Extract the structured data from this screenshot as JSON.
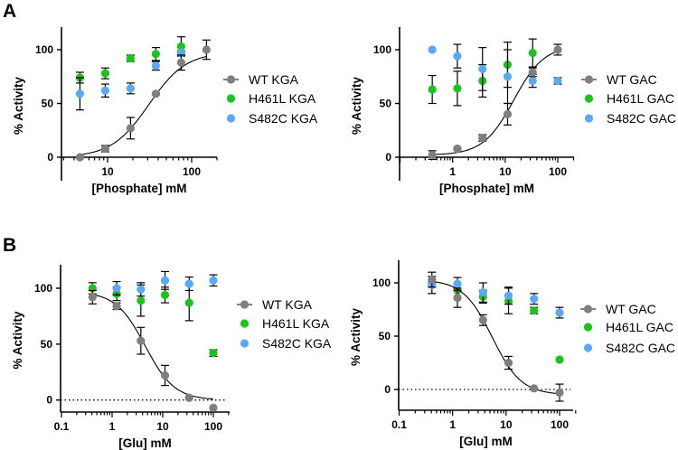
{
  "panel_labels": [
    "A",
    "B"
  ],
  "chart_data": [
    {
      "type": "scatter",
      "panel": "A",
      "xlabel": "[Phosphate] mM",
      "ylabel": "% Activity",
      "xscale": "log",
      "xlim": [
        2.8,
        200
      ],
      "ylim": [
        -22,
        121
      ],
      "xticks": [
        {
          "v": 10,
          "label": "10"
        },
        {
          "v": 100,
          "label": "100"
        }
      ],
      "yticks": [
        {
          "v": 0,
          "label": "0"
        },
        {
          "v": 50,
          "label": "50"
        },
        {
          "v": 100,
          "label": "100"
        }
      ],
      "zero_line": false,
      "legend_position": "right",
      "series": [
        {
          "name": "WT KGA",
          "color": "#7f7f7f",
          "fit_line": true,
          "x": [
            4.69,
            9.375,
            18.75,
            37.5,
            75,
            150
          ],
          "y": [
            0,
            8,
            27,
            59,
            88,
            100
          ],
          "err": [
            1,
            3,
            10,
            1,
            7,
            9
          ],
          "fit": {
            "bottom": 0,
            "top": 98,
            "ec50": 31,
            "hill": 1.96
          }
        },
        {
          "name": "H461L KGA",
          "color": "#1ec21e",
          "fit_line": false,
          "x": [
            4.69,
            9.375,
            18.75,
            37.5,
            75
          ],
          "y": [
            74,
            78,
            92,
            96,
            103
          ],
          "err": [
            5,
            5,
            3,
            6,
            9
          ]
        },
        {
          "name": "S482C KGA",
          "color": "#5aa9f7",
          "fit_line": false,
          "x": [
            4.69,
            9.375,
            18.75,
            37.5,
            75
          ],
          "y": [
            59,
            62,
            64,
            85,
            97
          ],
          "err": [
            15,
            6,
            5,
            4,
            2
          ]
        }
      ]
    },
    {
      "type": "scatter",
      "panel": "A",
      "xlabel": "[Phosphate] mM",
      "ylabel": "% Activity",
      "xscale": "log",
      "xlim": [
        0.1,
        200
      ],
      "ylim": [
        -22,
        121
      ],
      "xticks": [
        {
          "v": 1,
          "label": "1"
        },
        {
          "v": 10,
          "label": "10"
        },
        {
          "v": 100,
          "label": "100"
        }
      ],
      "yticks": [
        {
          "v": 0,
          "label": "0"
        },
        {
          "v": 50,
          "label": "50"
        },
        {
          "v": 100,
          "label": "100"
        }
      ],
      "zero_line": false,
      "legend_position": "right",
      "series": [
        {
          "name": "WT GAC",
          "color": "#7f7f7f",
          "fit_line": true,
          "x": [
            0.41,
            1.23,
            3.7,
            11.1,
            33.3,
            100
          ],
          "y": [
            2,
            8,
            18,
            40,
            79,
            100
          ],
          "err": [
            4,
            1,
            3,
            10,
            4,
            5
          ],
          "fit": {
            "bottom": 2,
            "top": 104,
            "ec50": 14.5,
            "hill": 1.5
          }
        },
        {
          "name": "H461L GAC",
          "color": "#1ec21e",
          "fit_line": false,
          "x": [
            0.41,
            1.23,
            3.7,
            11.1,
            33.3
          ],
          "y": [
            63,
            64,
            71,
            86,
            97
          ],
          "err": [
            13,
            16,
            15,
            21,
            13
          ]
        },
        {
          "name": "S482C GAC",
          "color": "#5aa9f7",
          "fit_line": false,
          "x": [
            0.41,
            1.23,
            3.7,
            11.1,
            33.3,
            100
          ],
          "y": [
            100,
            94,
            82,
            75,
            71,
            71
          ],
          "err": [
            0,
            11,
            20,
            25,
            6,
            3
          ]
        }
      ]
    },
    {
      "type": "scatter",
      "panel": "B",
      "xlabel": "[Glu] mM",
      "ylabel": "% Activity",
      "xscale": "log",
      "xlim": [
        0.1,
        200
      ],
      "ylim": [
        -10,
        121
      ],
      "xticks": [
        {
          "v": 0.1,
          "label": "0.1"
        },
        {
          "v": 1,
          "label": "1"
        },
        {
          "v": 10,
          "label": "10"
        },
        {
          "v": 100,
          "label": "100"
        }
      ],
      "yticks": [
        {
          "v": 0,
          "label": "0"
        },
        {
          "v": 50,
          "label": "50"
        },
        {
          "v": 100,
          "label": "100"
        }
      ],
      "zero_line": true,
      "legend_position": "right",
      "series": [
        {
          "name": "WT KGA",
          "color": "#7f7f7f",
          "fit_line": true,
          "x": [
            0.41,
            1.23,
            3.7,
            11.1,
            33.3,
            100
          ],
          "y": [
            92,
            84,
            53,
            22,
            2,
            -7
          ],
          "err": [
            6,
            3,
            12,
            9,
            0,
            0
          ],
          "fit": {
            "bottom": 0,
            "top": 97,
            "ec50": 4.5,
            "hill": -1.5
          }
        },
        {
          "name": "H461L KGA",
          "color": "#1ec21e",
          "fit_line": false,
          "x": [
            0.41,
            1.23,
            3.7,
            11.1,
            33.3,
            100
          ],
          "y": [
            100,
            95,
            89,
            94,
            87,
            42
          ],
          "err": [
            5,
            6,
            14,
            7,
            16,
            3
          ]
        },
        {
          "name": "S482C KGA",
          "color": "#5aa9f7",
          "fit_line": false,
          "x": [
            1.23,
            3.7,
            11.1,
            33.3,
            100
          ],
          "y": [
            100,
            99,
            107,
            104,
            107
          ],
          "err": [
            6,
            6,
            8,
            6,
            5
          ]
        }
      ]
    },
    {
      "type": "scatter",
      "panel": "B",
      "xlabel": "[Glu] mM",
      "ylabel": "% Activity",
      "xscale": "log",
      "xlim": [
        0.1,
        200
      ],
      "ylim": [
        -20,
        121
      ],
      "xticks": [
        {
          "v": 0.1,
          "label": "0.1"
        },
        {
          "v": 1,
          "label": "1"
        },
        {
          "v": 10,
          "label": "10"
        },
        {
          "v": 100,
          "label": "100"
        }
      ],
      "yticks": [
        {
          "v": 0,
          "label": "0"
        },
        {
          "v": 50,
          "label": "50"
        },
        {
          "v": 100,
          "label": "100"
        }
      ],
      "zero_line": true,
      "legend_position": "right",
      "series": [
        {
          "name": "WT GAC",
          "color": "#7f7f7f",
          "fit_line": true,
          "x": [
            0.41,
            1.23,
            3.7,
            11.1,
            33.3,
            100
          ],
          "y": [
            103,
            86,
            65,
            25,
            1,
            -3
          ],
          "err": [
            7,
            9,
            5,
            6,
            0,
            8
          ],
          "fit": {
            "bottom": -5,
            "top": 103,
            "ec50": 5.5,
            "hill": -1.6
          }
        },
        {
          "name": "H461L GAC",
          "color": "#1ec21e",
          "fit_line": false,
          "x": [
            0.41,
            1.23,
            3.7,
            11.1,
            33.3,
            100
          ],
          "y": [
            100,
            93,
            87,
            83,
            74,
            28
          ],
          "err": [
            0,
            0,
            6,
            12,
            3,
            0
          ]
        },
        {
          "name": "S482C GAC",
          "color": "#5aa9f7",
          "fit_line": false,
          "x": [
            0.41,
            1.23,
            3.7,
            11.1,
            33.3,
            100
          ],
          "y": [
            98,
            99,
            91,
            88,
            85,
            72
          ],
          "err": [
            8,
            6,
            9,
            8,
            5,
            5
          ]
        }
      ]
    }
  ]
}
